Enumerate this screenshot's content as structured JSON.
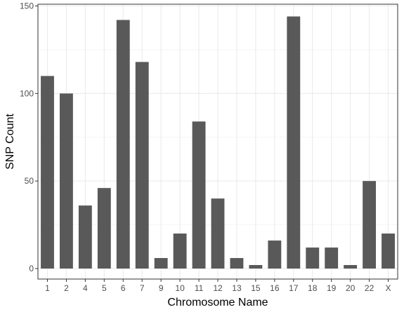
{
  "chart_data": {
    "type": "bar",
    "title": "",
    "xlabel": "Chromosome Name",
    "ylabel": "SNP Count",
    "categories": [
      "1",
      "2",
      "4",
      "5",
      "6",
      "7",
      "9",
      "10",
      "11",
      "12",
      "13",
      "15",
      "16",
      "17",
      "18",
      "19",
      "20",
      "22",
      "X"
    ],
    "values": [
      110,
      100,
      36,
      46,
      142,
      118,
      6,
      20,
      84,
      40,
      6,
      2,
      16,
      144,
      12,
      12,
      2,
      50,
      20
    ],
    "ylim": [
      -6,
      151
    ],
    "yticks": [
      0,
      50,
      100,
      150
    ],
    "grid": true,
    "legend": "none",
    "bar_color": "#595959",
    "grid_color": "#ebebeb",
    "panel_border_color": "#333333"
  }
}
